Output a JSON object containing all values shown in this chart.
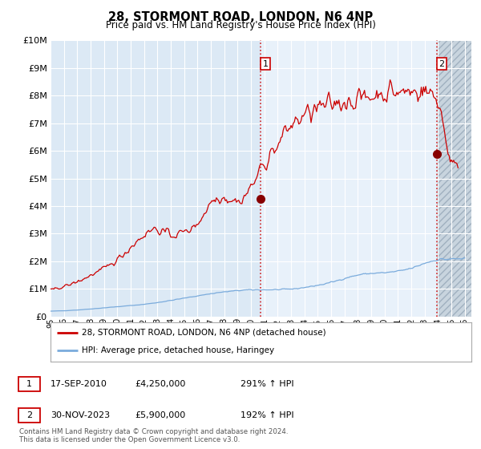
{
  "title": "28, STORMONT ROAD, LONDON, N6 4NP",
  "subtitle": "Price paid vs. HM Land Registry's House Price Index (HPI)",
  "ylim": [
    0,
    10000000
  ],
  "yticks": [
    0,
    1000000,
    2000000,
    3000000,
    4000000,
    5000000,
    6000000,
    7000000,
    8000000,
    9000000,
    10000000
  ],
  "ytick_labels": [
    "£0",
    "£1M",
    "£2M",
    "£3M",
    "£4M",
    "£5M",
    "£6M",
    "£7M",
    "£8M",
    "£9M",
    "£10M"
  ],
  "xlim_start": 1995.0,
  "xlim_end": 2026.5,
  "xticks": [
    1995,
    1996,
    1997,
    1998,
    1999,
    2000,
    2001,
    2002,
    2003,
    2004,
    2005,
    2006,
    2007,
    2008,
    2009,
    2010,
    2011,
    2012,
    2013,
    2014,
    2015,
    2016,
    2017,
    2018,
    2019,
    2020,
    2021,
    2022,
    2023,
    2024,
    2025,
    2026
  ],
  "bg_color": "#dce9f5",
  "bg_color_highlight": "#e8f1fa",
  "grid_color": "#c8d8e8",
  "hatch_color": "#c0c8d0",
  "red_line_color": "#cc0000",
  "blue_line_color": "#7aabdc",
  "marker1_date": 2010.72,
  "marker1_value": 4250000,
  "marker2_date": 2023.92,
  "marker2_value": 5900000,
  "legend_line1": "28, STORMONT ROAD, LONDON, N6 4NP (detached house)",
  "legend_line2": "HPI: Average price, detached house, Haringey",
  "footer": "Contains HM Land Registry data © Crown copyright and database right 2024.\nThis data is licensed under the Open Government Licence v3.0."
}
